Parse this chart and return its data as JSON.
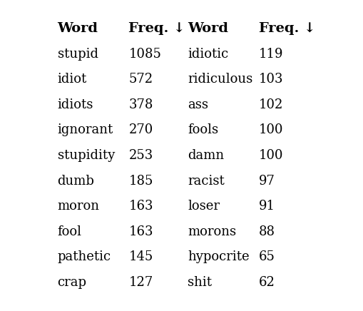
{
  "col1_words": [
    "stupid",
    "idiot",
    "idiots",
    "ignorant",
    "stupidity",
    "dumb",
    "moron",
    "fool",
    "pathetic",
    "crap"
  ],
  "col1_freqs": [
    "1085",
    "572",
    "378",
    "270",
    "253",
    "185",
    "163",
    "163",
    "145",
    "127"
  ],
  "col2_words": [
    "idiotic",
    "ridiculous",
    "ass",
    "fools",
    "damn",
    "racist",
    "loser",
    "morons",
    "hypocrite",
    "shit"
  ],
  "col2_freqs": [
    "119",
    "103",
    "102",
    "100",
    "100",
    "97",
    "91",
    "88",
    "65",
    "62"
  ],
  "header_word": "Word",
  "header_freq": "Freq. ↓",
  "bg_color": "#ffffff",
  "text_color": "#000000",
  "header_fontsize": 14,
  "body_fontsize": 13,
  "figsize": [
    5.1,
    4.36
  ],
  "dpi": 100
}
